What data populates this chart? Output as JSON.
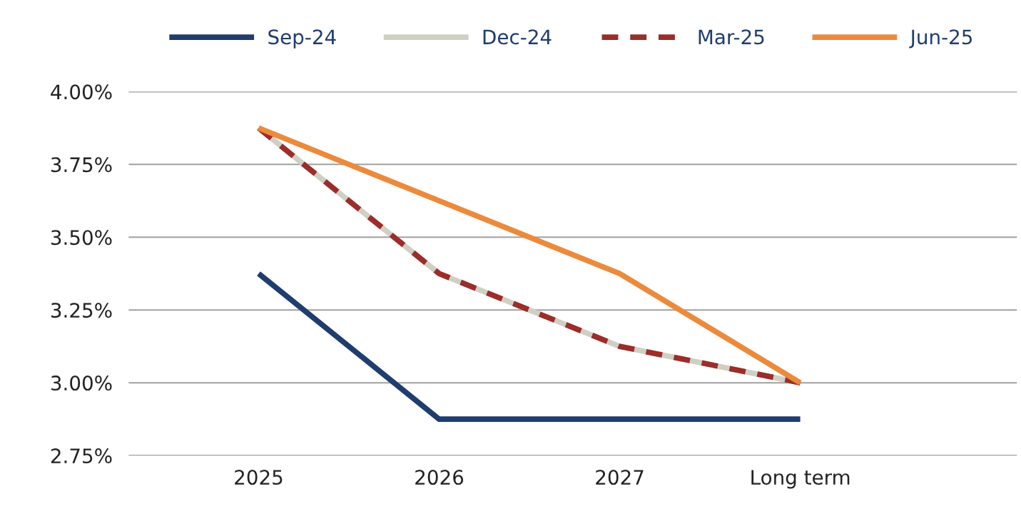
{
  "chart_data": {
    "type": "line",
    "categories": [
      "2025",
      "2026",
      "2027",
      "Long term"
    ],
    "series": [
      {
        "name": "Sep-24",
        "color": "#1f3d6e",
        "values": [
          3.375,
          2.875,
          2.875,
          2.875
        ],
        "line_style": "solid"
      },
      {
        "name": "Dec-24",
        "color": "#cfcfc4",
        "values": [
          3.875,
          3.375,
          3.125,
          3.0
        ],
        "line_style": "solid"
      },
      {
        "name": "Mar-25",
        "color": "#9b2d2a",
        "values": [
          3.875,
          3.375,
          3.125,
          3.0
        ],
        "line_style": "dashed"
      },
      {
        "name": "Jun-25",
        "color": "#ec8a3c",
        "values": [
          3.875,
          3.625,
          3.375,
          3.0
        ],
        "line_style": "solid"
      }
    ],
    "ylim": [
      2.75,
      4.0
    ],
    "yticks": [
      {
        "value": 2.75,
        "label": "2.75%"
      },
      {
        "value": 3.0,
        "label": "3.00%"
      },
      {
        "value": 3.25,
        "label": "3.25%"
      },
      {
        "value": 3.5,
        "label": "3.50%"
      },
      {
        "value": 3.75,
        "label": "3.75%"
      },
      {
        "value": 4.0,
        "label": "4.00%"
      }
    ],
    "grid": "y",
    "legend": "top",
    "marker": "none"
  }
}
